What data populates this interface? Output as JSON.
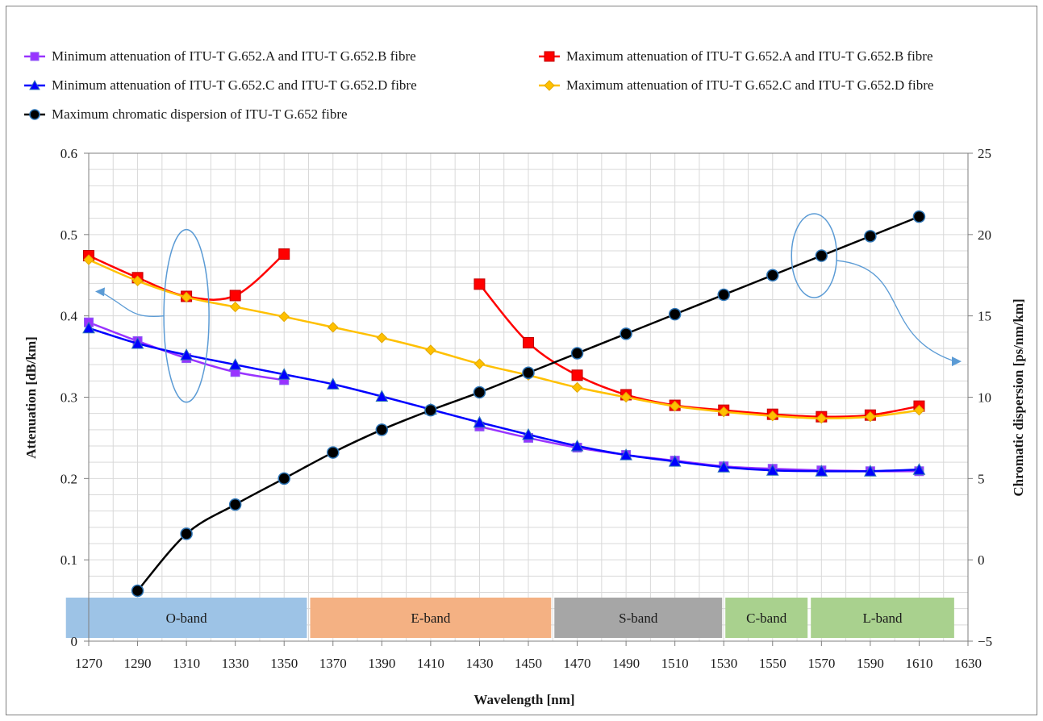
{
  "chart_data": {
    "type": "line",
    "title": "",
    "xlabel": "Wavelength [nm]",
    "ylabel": "Attenuation [dB/km]",
    "ylabel_right": "Chromatic dispersion [ps/nm/km]",
    "xlim": [
      1270,
      1630
    ],
    "ylim": [
      0,
      0.6
    ],
    "ylim_right": [
      -5,
      25
    ],
    "x_ticks": [
      1270,
      1290,
      1310,
      1330,
      1350,
      1370,
      1390,
      1410,
      1430,
      1450,
      1470,
      1490,
      1510,
      1530,
      1550,
      1570,
      1590,
      1610,
      1630
    ],
    "y_ticks": [
      0,
      0.1,
      0.2,
      0.3,
      0.4,
      0.5,
      0.6
    ],
    "y_tick_labels": [
      "0",
      "0.1",
      "0.2",
      "0.3",
      "0.4",
      "0.5",
      "0.6"
    ],
    "y_right_ticks": [
      -5,
      0,
      5,
      10,
      15,
      20,
      25
    ],
    "y_right_tick_labels": [
      "−5",
      "0",
      "5",
      "10",
      "15",
      "20",
      "25"
    ],
    "grid": true,
    "legend_position": "top",
    "series": [
      {
        "name": "Minimum attenuation of ITU-T G.652.A and ITU-T G.652.B fibre",
        "axis": "left",
        "color": "#9933ff",
        "marker": "square",
        "x": [
          1270,
          1290,
          1310,
          1330,
          1350
        ],
        "y": [
          0.392,
          0.369,
          0.348,
          0.331,
          0.321
        ]
      },
      {
        "name": "Maximum attenuation of ITU-T G.652.A and ITU-T G.652.B fibre",
        "axis": "left",
        "color": "#ff0000",
        "marker": "square",
        "x": [
          1270,
          1290,
          1310,
          1330,
          1350
        ],
        "y": [
          0.474,
          0.447,
          0.424,
          0.425,
          0.476
        ]
      },
      {
        "name": "Maximum attenuation of ITU-T G.652.A and ITU-T G.652.B fibre",
        "axis": "left",
        "color": "#ff0000",
        "marker": "square",
        "legend": false,
        "x": [
          1430,
          1450,
          1470,
          1490,
          1510,
          1530,
          1550,
          1570,
          1590,
          1610
        ],
        "y": [
          0.439,
          0.367,
          0.327,
          0.303,
          0.29,
          0.284,
          0.279,
          0.276,
          0.278,
          0.289
        ]
      },
      {
        "name": "Minimum attenuation of ITU-T G.652.A and ITU-T G.652.B fibre",
        "axis": "left",
        "color": "#9933ff",
        "marker": "square",
        "legend": false,
        "x": [
          1430,
          1450,
          1470,
          1490,
          1510,
          1530,
          1550,
          1570,
          1590,
          1610
        ],
        "y": [
          0.264,
          0.25,
          0.238,
          0.229,
          0.222,
          0.215,
          0.212,
          0.21,
          0.209,
          0.209
        ]
      },
      {
        "name": "Minimum attenuation of ITU-T G.652.C and ITU-T G.652.D fibre",
        "axis": "left",
        "color": "#0000ff",
        "marker": "triangle",
        "x": [
          1270,
          1290,
          1310,
          1330,
          1350,
          1370,
          1390,
          1410,
          1430,
          1450,
          1470,
          1490,
          1510,
          1530,
          1550,
          1570,
          1590,
          1610
        ],
        "y": [
          0.385,
          0.366,
          0.352,
          0.34,
          0.328,
          0.316,
          0.301,
          0.285,
          0.269,
          0.254,
          0.24,
          0.229,
          0.221,
          0.214,
          0.21,
          0.209,
          0.209,
          0.211
        ]
      },
      {
        "name": "Maximum attenuation of ITU-T G.652.C and ITU-T G.652.D fibre",
        "axis": "left",
        "color": "#ffc000",
        "marker": "diamond",
        "x": [
          1270,
          1290,
          1310,
          1330,
          1350,
          1370,
          1390,
          1410,
          1430,
          1450,
          1470,
          1490,
          1510,
          1530,
          1550,
          1570,
          1590,
          1610
        ],
        "y": [
          0.469,
          0.443,
          0.423,
          0.411,
          0.399,
          0.386,
          0.373,
          0.358,
          0.341,
          0.327,
          0.312,
          0.3,
          0.289,
          0.282,
          0.277,
          0.274,
          0.276,
          0.284
        ]
      },
      {
        "name": "Maximum chromatic dispersion of ITU-T G.652 fibre",
        "axis": "right",
        "color": "#000000",
        "marker": "circle",
        "x": [
          1290,
          1310,
          1330,
          1350,
          1370,
          1390,
          1410,
          1430,
          1450,
          1470,
          1490,
          1510,
          1530,
          1550,
          1570,
          1590,
          1610
        ],
        "y": [
          -1.9,
          1.6,
          3.4,
          5.0,
          6.6,
          8.0,
          9.2,
          10.3,
          11.5,
          12.7,
          13.9,
          15.1,
          16.3,
          17.5,
          18.7,
          19.9,
          21.1
        ]
      }
    ],
    "bands": [
      {
        "label": "O-band",
        "x_start": 1260,
        "x_end": 1360,
        "color": "#9dc3e6"
      },
      {
        "label": "E-band",
        "x_start": 1360,
        "x_end": 1460,
        "color": "#f4b183"
      },
      {
        "label": "S-band",
        "x_start": 1460,
        "x_end": 1530,
        "color": "#a6a6a6"
      },
      {
        "label": "C-band",
        "x_start": 1530,
        "x_end": 1565,
        "color": "#a9d18e"
      },
      {
        "label": "L-band",
        "x_start": 1565,
        "x_end": 1625,
        "color": "#a9d18e"
      }
    ],
    "annotations": [
      {
        "shape": "ellipse",
        "axis": "left",
        "x": 1310,
        "y": 0.4
      },
      {
        "shape": "ellipse",
        "axis": "right",
        "x": 1567,
        "y": 18.7
      }
    ]
  },
  "colors": {
    "annotation_stroke": "#5b9bd5",
    "grid": "#d9d9d9",
    "axis": "#7f7f7f",
    "marker_outline_blue": "#2e75b6"
  }
}
